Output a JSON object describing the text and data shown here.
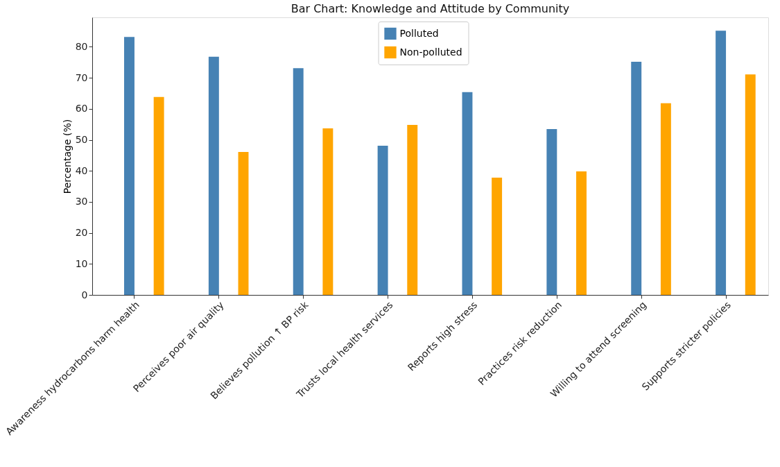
{
  "chart_data": {
    "type": "bar",
    "title": "Bar Chart: Knowledge and Attitude by Community",
    "ylabel": "Percentage (%)",
    "categories": [
      "Awareness hydrocarbons harm health",
      "Perceives poor air quality",
      "Believes pollution ↑ BP risk",
      "Trusts local health services",
      "Reports high stress",
      "Practices risk reduction",
      "Willing to attend screening",
      "Supports stricter policies"
    ],
    "series": [
      {
        "name": "Polluted",
        "color": "#4682b4",
        "values": [
          83.2,
          76.8,
          73.1,
          48.1,
          65.4,
          53.5,
          75.2,
          85.2
        ]
      },
      {
        "name": "Non-polluted",
        "color": "#ffa500",
        "values": [
          63.8,
          46.1,
          53.7,
          54.8,
          37.8,
          39.8,
          61.8,
          71.1
        ]
      }
    ],
    "ylim": [
      0,
      89.5
    ],
    "yticks": [
      0,
      10,
      20,
      30,
      40,
      50,
      60,
      70,
      80
    ],
    "grid": false,
    "legend": "top"
  }
}
